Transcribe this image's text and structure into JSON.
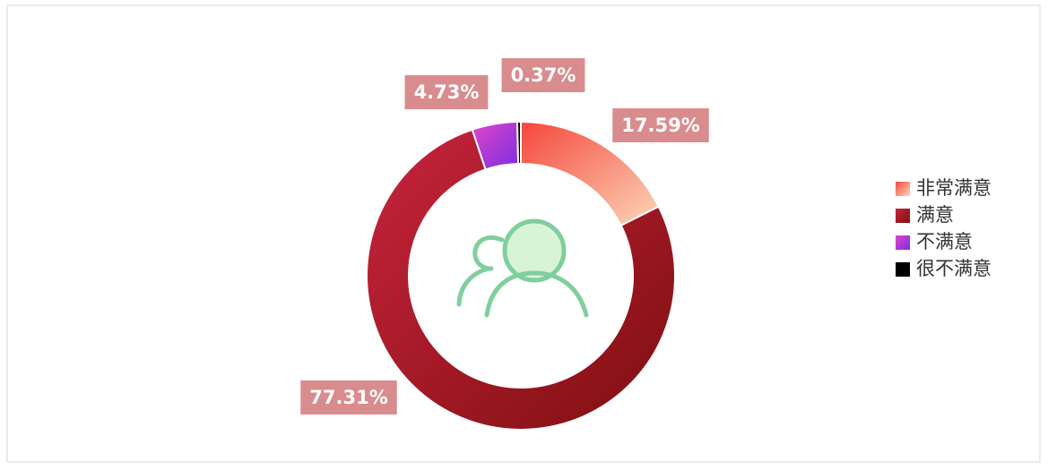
{
  "chart_data": {
    "type": "pie",
    "categories": [
      "非常满意",
      "满意",
      "不满意",
      "很不满意"
    ],
    "values": [
      17.59,
      77.31,
      4.73,
      0.37
    ],
    "value_labels": [
      "17.59%",
      "77.31%",
      "4.73%",
      "0.37%"
    ],
    "colors": [
      [
        "#f4473c",
        "#fdd6b8"
      ],
      [
        "#c8243e",
        "#7e0f0f"
      ],
      [
        "#e046c8",
        "#7b2ee0"
      ],
      [
        "#000000",
        "#000000"
      ]
    ],
    "donut": true,
    "legend": "right"
  }
}
